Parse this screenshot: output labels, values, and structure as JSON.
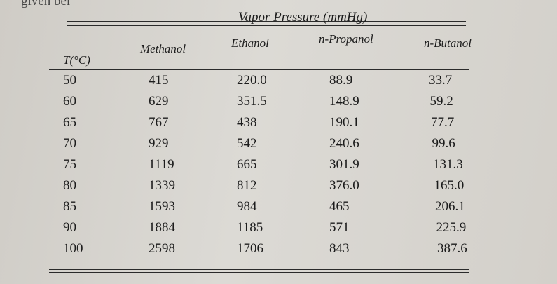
{
  "page_fragment": "given bel",
  "table": {
    "caption": "Vapor Pressure (mmHg)",
    "columns": [
      "T(°C)",
      "Methanol",
      "Ethanol",
      "n-Propanol",
      "n-Butanol"
    ],
    "rows": [
      [
        "50",
        "415",
        "220.0",
        "88.9",
        "33.7"
      ],
      [
        "60",
        "629",
        "351.5",
        "148.9",
        "59.2"
      ],
      [
        "65",
        "767",
        "438",
        "190.1",
        "77.7"
      ],
      [
        "70",
        "929",
        "542",
        "240.6",
        "99.6"
      ],
      [
        "75",
        "1119",
        "665",
        "301.9",
        "131.3"
      ],
      [
        "80",
        "1339",
        "812",
        "376.0",
        "165.0"
      ],
      [
        "85",
        "1593",
        "984",
        "465",
        "206.1"
      ],
      [
        "90",
        "1884",
        "1185",
        "571",
        "225.9"
      ],
      [
        "100",
        "2598",
        "1706",
        "843",
        "387.6"
      ]
    ]
  }
}
